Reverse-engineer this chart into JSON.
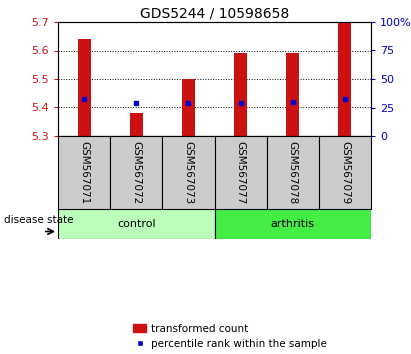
{
  "title": "GDS5244 / 10598658",
  "samples": [
    "GSM567071",
    "GSM567072",
    "GSM567073",
    "GSM567077",
    "GSM567078",
    "GSM567079"
  ],
  "bar_tops": [
    5.64,
    5.38,
    5.5,
    5.59,
    5.59,
    5.7
  ],
  "bar_base": 5.3,
  "percentile_values": [
    5.43,
    5.415,
    5.415,
    5.415,
    5.42,
    5.43
  ],
  "ylim_left": [
    5.3,
    5.7
  ],
  "ylim_right": [
    0,
    100
  ],
  "yticks_left": [
    5.3,
    5.4,
    5.5,
    5.6,
    5.7
  ],
  "yticks_right": [
    0,
    25,
    50,
    75,
    100
  ],
  "ytick_labels_right": [
    "0",
    "25",
    "50",
    "75",
    "100%"
  ],
  "bar_color": "#cc1111",
  "percentile_color": "#0000cc",
  "control_color": "#bbffbb",
  "arthritis_color": "#44ee44",
  "sample_label_bg": "#cccccc",
  "disease_label": "disease state",
  "control_label": "control",
  "arthritis_label": "arthritis",
  "legend_bar_label": "transformed count",
  "legend_percentile_label": "percentile rank within the sample",
  "bar_width": 0.25,
  "title_fontsize": 10,
  "axis_fontsize": 8,
  "label_fontsize": 8,
  "tick_label_fontsize": 7.5
}
